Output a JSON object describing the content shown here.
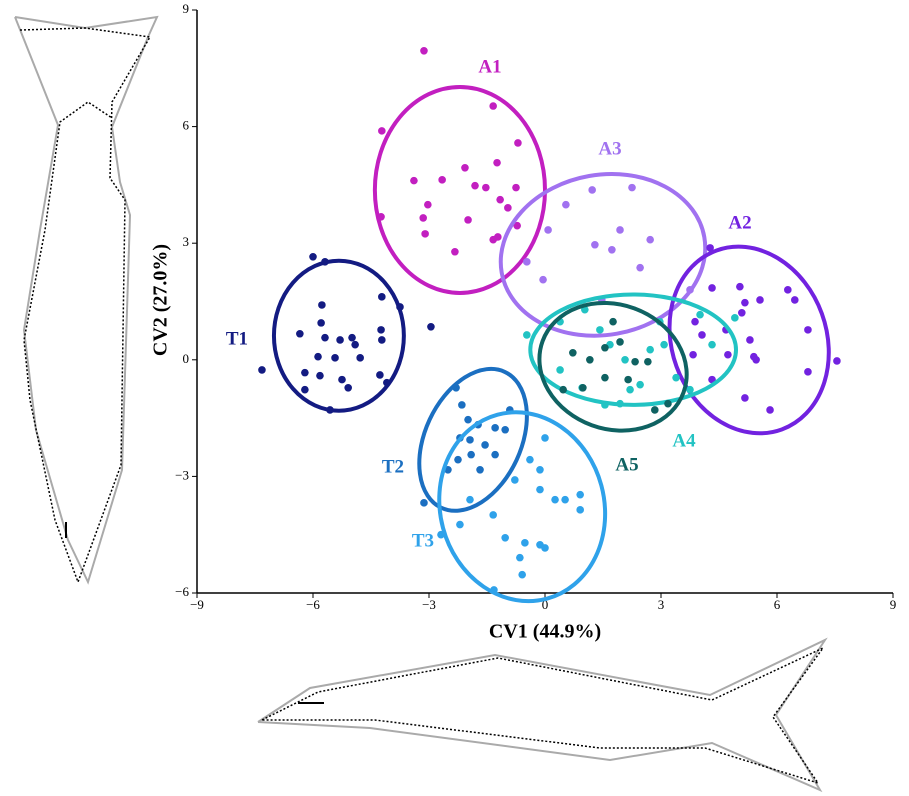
{
  "chart_data": {
    "type": "scatter",
    "x_label": "CV1 (44.9%)",
    "y_label": "CV2 (27.0%)",
    "xlim": [
      -9,
      9
    ],
    "ylim": [
      -6,
      9
    ],
    "xticks": [
      {
        "value": -9,
        "label": "−9"
      },
      {
        "value": -6,
        "label": "−6"
      },
      {
        "value": -3,
        "label": "−3"
      },
      0,
      3,
      6,
      9
    ],
    "yticks": [
      {
        "value": -6,
        "label": "−6"
      },
      {
        "value": -3,
        "label": "−3"
      },
      0,
      3,
      6,
      9
    ],
    "grid": false,
    "series": [
      {
        "name": "A1",
        "color": "#c21fc0",
        "x": [
          -3.13,
          -4.22,
          -1.34,
          -0.7,
          -3.39,
          -2.66,
          -2.07,
          -1.24,
          -1.81,
          -1.53,
          -0.75,
          -1.16,
          -0.96,
          -3.03,
          -4.24,
          -3.15,
          -1.99,
          -3.1,
          -1.34,
          -1.22,
          -2.33,
          -0.72
        ],
        "y": [
          7.95,
          5.89,
          6.53,
          5.58,
          4.61,
          4.63,
          4.94,
          5.07,
          4.48,
          4.43,
          4.43,
          4.12,
          3.91,
          3.99,
          3.68,
          3.65,
          3.6,
          3.24,
          3.09,
          3.16,
          2.78,
          3.45
        ],
        "ellipse": [
          -2.2,
          4.37,
          2.2,
          2.65,
          0
        ]
      },
      {
        "name": "A3",
        "color": "#a172f0",
        "x": [
          1.22,
          2.25,
          0.08,
          1.29,
          1.73,
          2.72,
          -0.05,
          1.47,
          2.46,
          0.54,
          1.94,
          -0.47,
          3.75
        ],
        "y": [
          4.37,
          4.43,
          3.34,
          2.96,
          2.83,
          3.09,
          2.06,
          1.54,
          2.37,
          3.99,
          3.34,
          2.52,
          1.8
        ],
        "ellipse": [
          1.5,
          2.7,
          2.66,
          2.06,
          -10
        ]
      },
      {
        "name": "A2",
        "color": "#7222e0",
        "x": [
          4.27,
          4.32,
          5.04,
          5.17,
          5.56,
          5.09,
          3.88,
          4.06,
          4.68,
          5.3,
          5.4,
          5.46,
          4.73,
          3.83,
          4.32,
          5.17,
          5.82,
          6.28,
          6.46,
          6.8,
          7.55,
          6.8
        ],
        "y": [
          2.88,
          1.85,
          1.88,
          1.47,
          1.54,
          1.21,
          0.98,
          0.64,
          0.77,
          0.51,
          0.08,
          0,
          0.13,
          0.13,
          -0.51,
          -0.98,
          -1.29,
          1.8,
          1.54,
          0.77,
          -0.03,
          -0.31
        ],
        "ellipse": [
          5.28,
          0.51,
          2,
          2.45,
          -20
        ]
      },
      {
        "name": "A4",
        "color": "#22c3c3",
        "x": [
          -0.47,
          0.39,
          1.03,
          1.42,
          1.68,
          2.07,
          2.2,
          1.55,
          0.96,
          0.39,
          2.72,
          3.08,
          2.97,
          4.01,
          4.32,
          4.91,
          3.39,
          3.75,
          2.46,
          1.94
        ],
        "y": [
          0.64,
          0.98,
          1.29,
          0.77,
          0.39,
          0,
          -0.77,
          -1.16,
          -0.72,
          -0.26,
          0.26,
          0.39,
          0.98,
          1.16,
          0.39,
          1.08,
          -0.46,
          -0.77,
          -0.64,
          -1.13
        ],
        "ellipse": [
          2.28,
          0.26,
          2.66,
          1.42,
          0
        ]
      },
      {
        "name": "A5",
        "color": "#0f6262",
        "x": [
          0.72,
          1.16,
          1.55,
          1.94,
          2.33,
          2.66,
          0.47,
          0.98,
          1.55,
          2.15,
          2.84,
          3.18,
          1.76
        ],
        "y": [
          0.18,
          0,
          0.31,
          0.46,
          -0.05,
          -0.05,
          -0.77,
          -0.72,
          -0.46,
          -0.51,
          -1.29,
          -1.13,
          0.98
        ],
        "ellipse": [
          1.76,
          -0.18,
          1.94,
          1.6,
          20
        ]
      },
      {
        "name": "T1",
        "color": "#131b82",
        "x": [
          -6,
          -5.69,
          -7.32,
          -5.77,
          -5.79,
          -6.34,
          -5.69,
          -5.3,
          -4.99,
          -4.91,
          -4.24,
          -4.22,
          -5.87,
          -5.43,
          -4.78,
          -6.21,
          -5.82,
          -5.25,
          -5.09,
          -4.27,
          -4.09,
          -6.21,
          -5.56,
          -4.22,
          -3.75,
          -2.95
        ],
        "y": [
          2.65,
          2.52,
          -0.26,
          1.41,
          0.95,
          0.67,
          0.57,
          0.51,
          0.57,
          0.39,
          0.77,
          0.51,
          0.08,
          0.05,
          0.05,
          -0.33,
          -0.41,
          -0.51,
          -0.72,
          -0.39,
          -0.59,
          -0.77,
          -1.29,
          1.62,
          1.36,
          0.85
        ],
        "ellipse": [
          -5.33,
          0.62,
          1.68,
          1.93,
          0
        ]
      },
      {
        "name": "T2",
        "color": "#1b6fc1",
        "x": [
          -2.3,
          -2.15,
          -1.99,
          -1.73,
          -1.29,
          -1.03,
          -2.2,
          -1.94,
          -1.55,
          -1.91,
          -2.25,
          -1.29,
          -2.51,
          -1.68,
          -3.13,
          -0.91
        ],
        "y": [
          -0.72,
          -1.16,
          -1.54,
          -1.67,
          -1.75,
          -1.8,
          -2.01,
          -2.06,
          -2.19,
          -2.44,
          -2.57,
          -2.44,
          -2.83,
          -2.83,
          -3.68,
          -1.29
        ],
        "ellipse": [
          -1.86,
          -2.06,
          1.24,
          1.93,
          25
        ]
      },
      {
        "name": "T3",
        "color": "#2fa2ea",
        "x": [
          0,
          -0.39,
          -0.13,
          -0.78,
          -0.13,
          0.26,
          0.52,
          0.91,
          0.91,
          -1.94,
          -2.2,
          -1.34,
          -1.03,
          -0.52,
          -0.13,
          0,
          -0.65,
          -0.59,
          -2.69,
          -1.32
        ],
        "y": [
          -2.01,
          -2.57,
          -2.83,
          -3.09,
          -3.34,
          -3.6,
          -3.6,
          -3.47,
          -3.86,
          -3.6,
          -4.24,
          -3.99,
          -4.58,
          -4.71,
          -4.76,
          -4.84,
          -5.09,
          -5.53,
          -4.5,
          -5.92
        ],
        "ellipse": [
          -0.59,
          -3.78,
          2.12,
          2.45,
          -15
        ]
      }
    ]
  }
}
